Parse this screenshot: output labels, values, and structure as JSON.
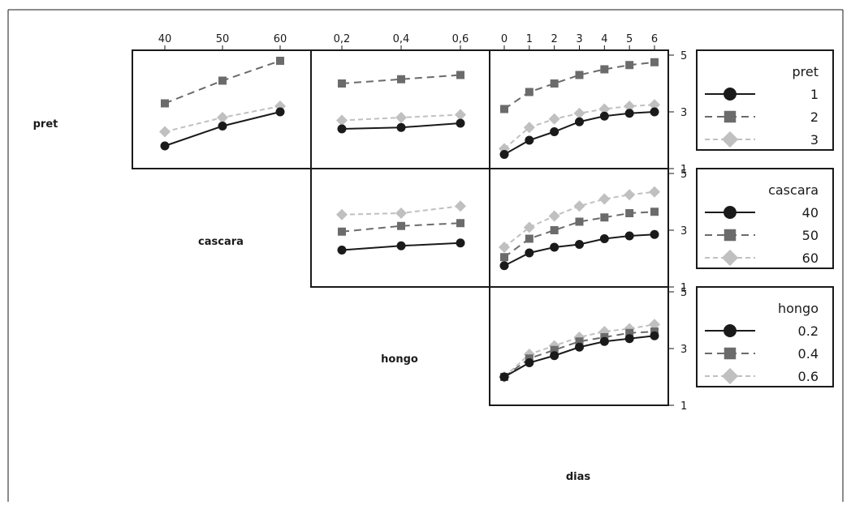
{
  "chart_data": {
    "type": "line",
    "variables": [
      "pret",
      "cascara",
      "hongo",
      "dias"
    ],
    "factor_levels": {
      "pret": [
        "1",
        "2",
        "3"
      ],
      "cascara": [
        "40",
        "50",
        "60"
      ],
      "hongo": [
        "0.2",
        "0.4",
        "0.6"
      ]
    },
    "top_ticks": {
      "cascara": [
        "40",
        "50",
        "60"
      ],
      "hongo": [
        "0,2",
        "0,4",
        "0,6"
      ],
      "dias": [
        "0",
        "1",
        "2",
        "3",
        "4",
        "5",
        "6"
      ]
    },
    "right_ticks": [
      "1",
      "3",
      "5"
    ],
    "ylim": [
      1,
      5
    ],
    "series_colors": [
      "#1a1a1a",
      "#6b6b6b",
      "#c0c0c0"
    ],
    "series_markers": [
      "circle",
      "square",
      "diamond"
    ],
    "series_dashes": [
      "none",
      "9,6",
      "6,4"
    ],
    "panels": [
      {
        "row": "pret",
        "col": "cascara",
        "x": [
          40,
          50,
          60
        ],
        "series": [
          {
            "name": "1",
            "values": [
              1.8,
              2.5,
              3.0
            ]
          },
          {
            "name": "2",
            "values": [
              3.3,
              4.1,
              4.8
            ]
          },
          {
            "name": "3",
            "values": [
              2.3,
              2.8,
              3.2
            ]
          }
        ]
      },
      {
        "row": "pret",
        "col": "hongo",
        "x": [
          0.2,
          0.4,
          0.6
        ],
        "series": [
          {
            "name": "1",
            "values": [
              2.4,
              2.45,
              2.6
            ]
          },
          {
            "name": "2",
            "values": [
              4.0,
              4.15,
              4.3
            ]
          },
          {
            "name": "3",
            "values": [
              2.7,
              2.8,
              2.9
            ]
          }
        ]
      },
      {
        "row": "pret",
        "col": "dias",
        "x": [
          0,
          1,
          2,
          3,
          4,
          5,
          6
        ],
        "series": [
          {
            "name": "1",
            "values": [
              1.5,
              2.0,
              2.3,
              2.65,
              2.85,
              2.95,
              3.0
            ]
          },
          {
            "name": "2",
            "values": [
              3.1,
              3.7,
              4.0,
              4.3,
              4.5,
              4.65,
              4.75
            ]
          },
          {
            "name": "3",
            "values": [
              1.7,
              2.45,
              2.75,
              2.95,
              3.1,
              3.2,
              3.25
            ]
          }
        ]
      },
      {
        "row": "cascara",
        "col": "hongo",
        "x": [
          0.2,
          0.4,
          0.6
        ],
        "series": [
          {
            "name": "40",
            "values": [
              2.3,
              2.45,
              2.55
            ]
          },
          {
            "name": "50",
            "values": [
              2.95,
              3.15,
              3.25
            ]
          },
          {
            "name": "60",
            "values": [
              3.55,
              3.6,
              3.85
            ]
          }
        ]
      },
      {
        "row": "cascara",
        "col": "dias",
        "x": [
          0,
          1,
          2,
          3,
          4,
          5,
          6
        ],
        "series": [
          {
            "name": "40",
            "values": [
              1.75,
              2.2,
              2.4,
              2.5,
              2.7,
              2.8,
              2.85
            ]
          },
          {
            "name": "50",
            "values": [
              2.05,
              2.7,
              3.0,
              3.3,
              3.45,
              3.6,
              3.65
            ]
          },
          {
            "name": "60",
            "values": [
              2.4,
              3.1,
              3.5,
              3.85,
              4.1,
              4.25,
              4.35
            ]
          }
        ]
      },
      {
        "row": "hongo",
        "col": "dias",
        "x": [
          0,
          1,
          2,
          3,
          4,
          5,
          6
        ],
        "series": [
          {
            "name": "0.2",
            "values": [
              2.0,
              2.5,
              2.75,
              3.05,
              3.25,
              3.35,
              3.45
            ]
          },
          {
            "name": "0.4",
            "values": [
              2.0,
              2.65,
              2.95,
              3.25,
              3.4,
              3.55,
              3.6
            ]
          },
          {
            "name": "0.6",
            "values": [
              2.0,
              2.8,
              3.1,
              3.4,
              3.6,
              3.7,
              3.85
            ]
          }
        ]
      }
    ],
    "legends": [
      {
        "title": "pret",
        "entries": [
          "1",
          "2",
          "3"
        ]
      },
      {
        "title": "cascara",
        "entries": [
          "40",
          "50",
          "60"
        ]
      },
      {
        "title": "hongo",
        "entries": [
          "0.2",
          "0.4",
          "0.6"
        ]
      }
    ],
    "row_labels": [
      "pret",
      "cascara",
      "hongo"
    ],
    "col_label": "dias"
  }
}
